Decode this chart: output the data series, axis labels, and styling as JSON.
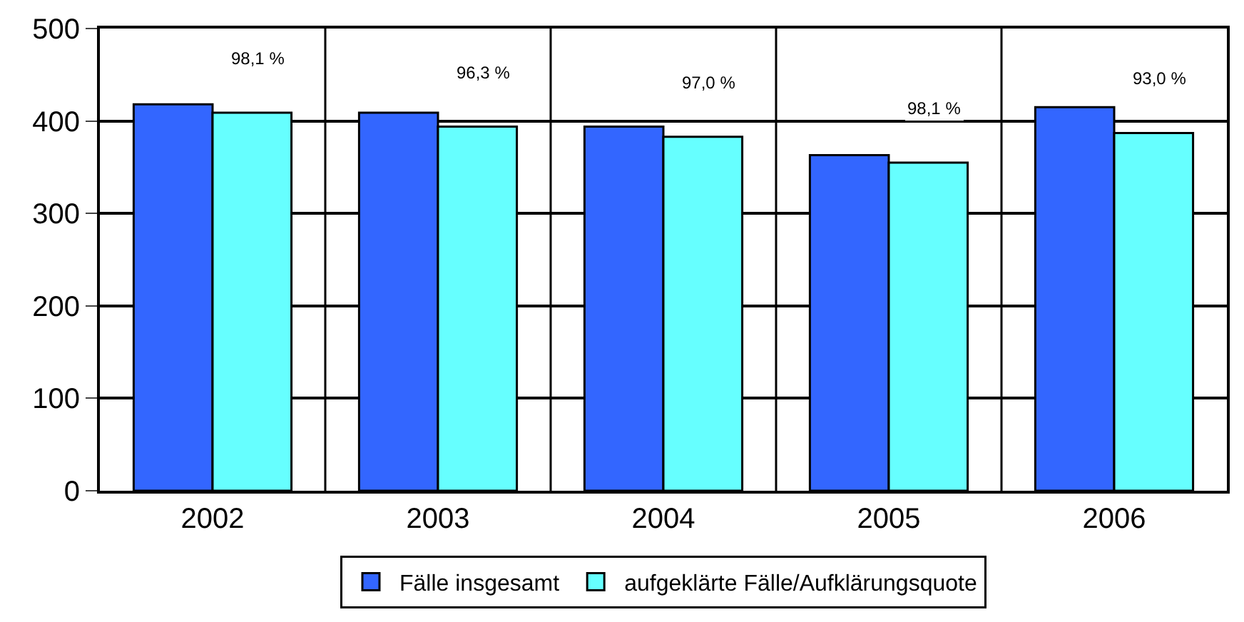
{
  "chart_data": {
    "type": "bar",
    "categories": [
      "2002",
      "2003",
      "2004",
      "2005",
      "2006"
    ],
    "series": [
      {
        "name": "Fälle insgesamt",
        "color": "#3366ff",
        "values": [
          418,
          409,
          394,
          363,
          415
        ]
      },
      {
        "name": "aufgeklärte Fälle/Aufklärungsquote",
        "color": "#66ffff",
        "values": [
          409,
          394,
          383,
          355,
          387
        ]
      }
    ],
    "annotations": [
      "98,1 %",
      "96,3 %",
      "97,0 %",
      "98,1 %",
      "93,0 %"
    ],
    "ylim": [
      0,
      500
    ],
    "yticks": [
      0,
      100,
      200,
      300,
      400,
      500
    ],
    "grid": true,
    "legend": "bottom"
  }
}
